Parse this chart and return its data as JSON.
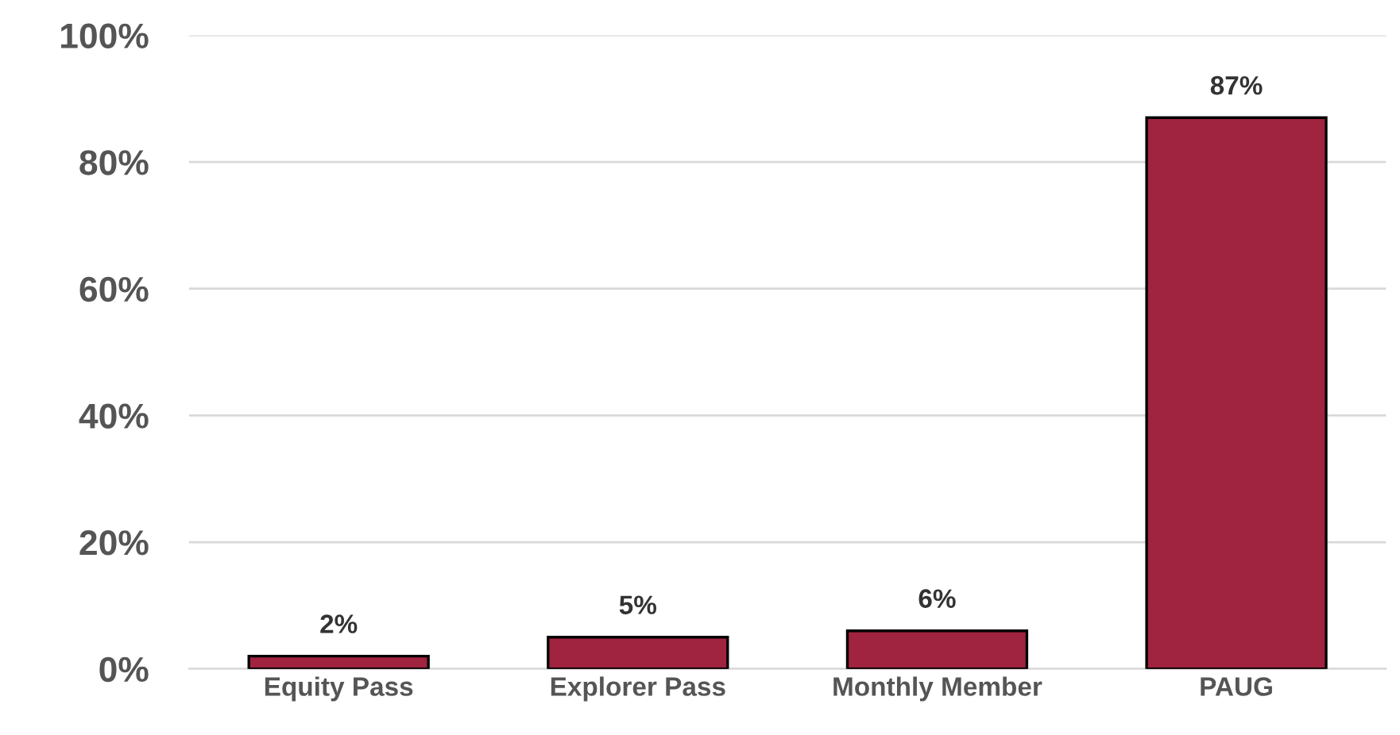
{
  "chart_data": {
    "type": "bar",
    "categories": [
      "Equity Pass",
      "Explorer Pass",
      "Monthly Member",
      "PAUG"
    ],
    "values": [
      2,
      5,
      6,
      87
    ],
    "value_labels": [
      "2%",
      "5%",
      "6%",
      "87%"
    ],
    "color": "#a0233f",
    "ylim": [
      0,
      100
    ],
    "yticks": [
      {
        "value": 0,
        "label": "0%"
      },
      {
        "value": 20,
        "label": "20%"
      },
      {
        "value": 40,
        "label": "40%"
      },
      {
        "value": 60,
        "label": "60%"
      },
      {
        "value": 80,
        "label": "80%"
      },
      {
        "value": 100,
        "label": "100%"
      }
    ],
    "grid": "y"
  }
}
